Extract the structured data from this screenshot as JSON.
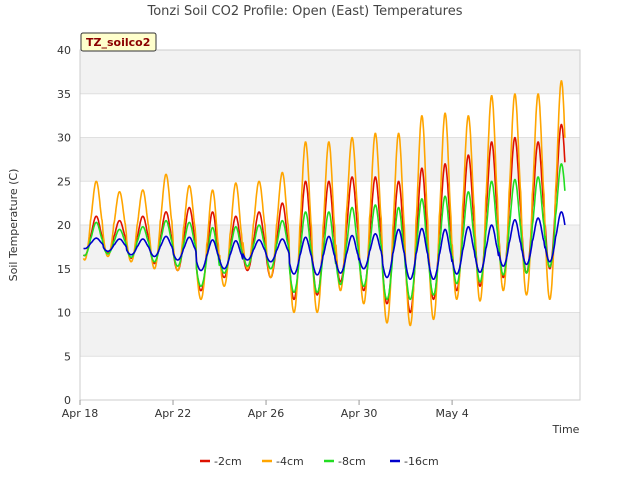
{
  "chart_data": {
    "type": "line",
    "title": "Tonzi Soil CO2 Profile: Open (East) Temperatures",
    "badge": "TZ_soilco2",
    "xlabel": "Time",
    "ylabel": "Soil Temperature (C)",
    "x_range_days": [
      0,
      21.5
    ],
    "ylim": [
      0,
      40
    ],
    "y_ticks": [
      0,
      5,
      10,
      15,
      20,
      25,
      30,
      35,
      40
    ],
    "x_ticks": [
      {
        "day": 0,
        "label": "Apr 18"
      },
      {
        "day": 4,
        "label": "Apr 22"
      },
      {
        "day": 8,
        "label": "Apr 26"
      },
      {
        "day": 12,
        "label": "Apr 30"
      },
      {
        "day": 16,
        "label": "May 4"
      }
    ],
    "grid": "horizontal-bands",
    "legend_position": "bottom",
    "series": [
      {
        "name": "-2cm",
        "color": "#dd1100",
        "min": [
          16.5,
          16.8,
          16.2,
          15.6,
          14.8,
          12.5,
          14.0,
          14.8,
          14.0,
          11.5,
          12.0,
          13.5,
          12.5,
          11.0,
          10.0,
          11.5,
          12.5,
          13.0,
          14.0,
          14.5,
          15.0,
          16.0
        ],
        "max": [
          21.0,
          20.5,
          21.0,
          21.5,
          22.0,
          21.5,
          21.0,
          21.5,
          22.5,
          25.0,
          25.0,
          25.5,
          25.5,
          25.0,
          26.5,
          27.0,
          28.0,
          29.5,
          30.0,
          29.5,
          31.5,
          25.0
        ]
      },
      {
        "name": "-4cm",
        "color": "#ffa500",
        "min": [
          16.0,
          16.4,
          15.8,
          15.0,
          14.8,
          11.5,
          13.0,
          15.0,
          14.0,
          10.0,
          10.0,
          12.5,
          11.0,
          8.8,
          8.5,
          9.2,
          11.5,
          11.3,
          12.5,
          12.0,
          11.5,
          16.0
        ],
        "max": [
          25.0,
          23.8,
          24.0,
          25.8,
          24.5,
          24.0,
          24.8,
          25.0,
          26.0,
          29.5,
          29.5,
          30.0,
          30.5,
          30.5,
          32.5,
          32.8,
          32.5,
          34.8,
          35.0,
          35.0,
          36.5,
          24.0
        ]
      },
      {
        "name": "-8cm",
        "color": "#22dd22",
        "min": [
          16.5,
          16.7,
          16.3,
          15.8,
          15.3,
          13.0,
          14.5,
          15.3,
          15.0,
          12.3,
          12.3,
          13.2,
          13.0,
          11.5,
          11.5,
          12.0,
          13.3,
          13.5,
          14.3,
          14.5,
          15.2,
          17.5
        ],
        "max": [
          20.3,
          19.5,
          19.8,
          20.5,
          20.3,
          19.7,
          19.8,
          20.0,
          20.5,
          21.5,
          21.5,
          22.0,
          22.3,
          22.0,
          23.0,
          23.3,
          23.8,
          25.0,
          25.2,
          25.5,
          27.0,
          21.0
        ]
      },
      {
        "name": "-16cm",
        "color": "#0000cc",
        "min": [
          17.3,
          17.0,
          16.6,
          16.4,
          16.0,
          14.8,
          15.0,
          16.0,
          15.8,
          14.4,
          14.3,
          14.5,
          15.0,
          14.0,
          13.8,
          13.8,
          14.4,
          14.6,
          15.3,
          15.5,
          15.8,
          19.0
        ],
        "max": [
          18.5,
          18.4,
          18.4,
          18.7,
          18.6,
          18.3,
          18.2,
          18.3,
          18.4,
          18.6,
          18.7,
          18.8,
          19.0,
          19.5,
          19.6,
          19.5,
          19.8,
          20.0,
          20.6,
          20.8,
          21.5,
          19.2
        ]
      }
    ]
  }
}
